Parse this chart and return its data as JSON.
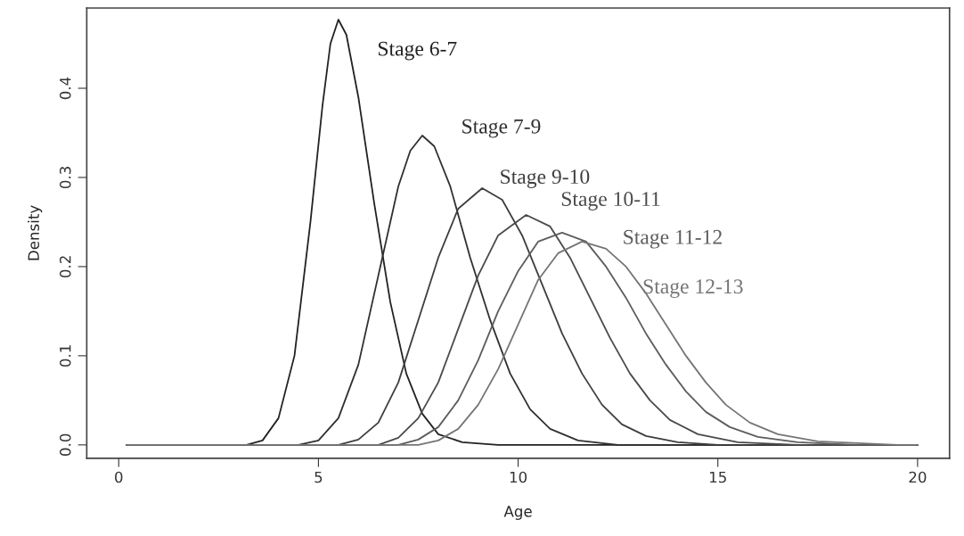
{
  "chart_data": {
    "type": "line",
    "xlabel": "Age",
    "ylabel": "Density",
    "xlim": [
      -0.8,
      20.8
    ],
    "ylim": [
      -0.015,
      0.49
    ],
    "xticks": [
      0,
      5,
      10,
      15,
      20
    ],
    "yticks": [
      {
        "value": 0.0,
        "label": "0.0"
      },
      0.1,
      0.2,
      0.3,
      0.4
    ],
    "grid": false,
    "legend": false,
    "marker": "none",
    "line_style": "solid",
    "series": [
      {
        "name": "Stage 6-7",
        "color": "#222222",
        "x": [
          0.2,
          3.2,
          3.6,
          4,
          4.4,
          4.8,
          5.1,
          5.3,
          5.5,
          5.7,
          6,
          6.4,
          6.8,
          7.2,
          7.6,
          8,
          8.6,
          9.5,
          20
        ],
        "values": [
          0,
          0,
          0.005,
          0.03,
          0.1,
          0.25,
          0.38,
          0.45,
          0.477,
          0.46,
          0.39,
          0.27,
          0.16,
          0.08,
          0.035,
          0.012,
          0.003,
          0,
          0
        ]
      },
      {
        "name": "Stage 7-9",
        "color": "#303030",
        "x": [
          0.2,
          4.5,
          5,
          5.5,
          6,
          6.5,
          7,
          7.3,
          7.6,
          7.9,
          8.3,
          8.8,
          9.3,
          9.8,
          10.3,
          10.8,
          11.5,
          12.5,
          20
        ],
        "values": [
          0,
          0,
          0.005,
          0.03,
          0.09,
          0.19,
          0.29,
          0.33,
          0.347,
          0.335,
          0.29,
          0.21,
          0.14,
          0.08,
          0.04,
          0.018,
          0.005,
          0,
          0
        ]
      },
      {
        "name": "Stage 9-10",
        "color": "#3e3e3e",
        "x": [
          0.2,
          5.5,
          6,
          6.5,
          7,
          7.5,
          8,
          8.5,
          9.1,
          9.6,
          10.1,
          10.6,
          11.1,
          11.6,
          12.1,
          12.6,
          13.2,
          14,
          15,
          20
        ],
        "values": [
          0,
          0,
          0.006,
          0.025,
          0.07,
          0.14,
          0.21,
          0.265,
          0.288,
          0.275,
          0.235,
          0.18,
          0.125,
          0.08,
          0.045,
          0.023,
          0.01,
          0.003,
          0,
          0
        ]
      },
      {
        "name": "Stage 10-11",
        "color": "#4a4a4a",
        "x": [
          0.2,
          6.5,
          7,
          7.5,
          8,
          8.5,
          9,
          9.5,
          10.2,
          10.8,
          11.3,
          11.8,
          12.3,
          12.8,
          13.3,
          13.8,
          14.5,
          15.5,
          17,
          20
        ],
        "values": [
          0,
          0,
          0.008,
          0.03,
          0.07,
          0.13,
          0.19,
          0.235,
          0.258,
          0.245,
          0.21,
          0.165,
          0.12,
          0.08,
          0.05,
          0.028,
          0.012,
          0.003,
          0,
          0
        ]
      },
      {
        "name": "Stage 11-12",
        "color": "#5c5c5c",
        "x": [
          0.2,
          7,
          7.5,
          8,
          8.5,
          9,
          9.5,
          10,
          10.5,
          11.1,
          11.7,
          12.2,
          12.7,
          13.2,
          13.7,
          14.2,
          14.7,
          15.3,
          16,
          17,
          18.5,
          20
        ],
        "values": [
          0,
          0,
          0.006,
          0.02,
          0.05,
          0.095,
          0.15,
          0.195,
          0.228,
          0.238,
          0.228,
          0.2,
          0.165,
          0.125,
          0.09,
          0.06,
          0.037,
          0.02,
          0.009,
          0.003,
          0,
          0
        ]
      },
      {
        "name": "Stage 12-13",
        "color": "#757575",
        "x": [
          0.2,
          7.5,
          8,
          8.5,
          9,
          9.5,
          10,
          10.5,
          11,
          11.6,
          12.2,
          12.7,
          13.2,
          13.7,
          14.2,
          14.7,
          15.2,
          15.8,
          16.5,
          17.5,
          19.5,
          20
        ],
        "values": [
          0,
          0,
          0.005,
          0.018,
          0.045,
          0.085,
          0.135,
          0.185,
          0.215,
          0.228,
          0.22,
          0.2,
          0.17,
          0.135,
          0.1,
          0.07,
          0.045,
          0.025,
          0.012,
          0.004,
          0,
          0
        ]
      }
    ]
  }
}
